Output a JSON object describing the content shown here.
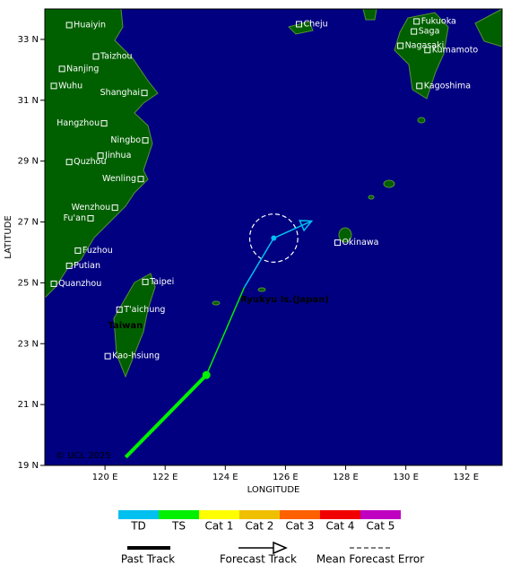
{
  "map": {
    "xlabel": "LONGITUDE",
    "ylabel": "LATITUDE",
    "xlim": [
      118,
      133.2
    ],
    "ylim": [
      19,
      34
    ],
    "xticks": [
      {
        "value": 120,
        "label": "120 E"
      },
      {
        "value": 122,
        "label": "122 E"
      },
      {
        "value": 124,
        "label": "124 E"
      },
      {
        "value": 126,
        "label": "126 E"
      },
      {
        "value": 128,
        "label": "128 E"
      },
      {
        "value": 130,
        "label": "130 E"
      },
      {
        "value": 132,
        "label": "132 E"
      }
    ],
    "yticks": [
      {
        "value": 19,
        "label": "19 N"
      },
      {
        "value": 21,
        "label": "21 N"
      },
      {
        "value": 23,
        "label": "23 N"
      },
      {
        "value": 25,
        "label": "25 N"
      },
      {
        "value": 27,
        "label": "27 N"
      },
      {
        "value": 29,
        "label": "29 N"
      },
      {
        "value": 31,
        "label": "31 N"
      },
      {
        "value": 33,
        "label": "33 N"
      }
    ],
    "copyright": "© UCL 2025",
    "region_labels": [
      {
        "text": "Taiwan",
        "lon": 120.1,
        "lat": 23.6,
        "color": "#00c000"
      },
      {
        "text": "Ryukyu Is.(Japan)",
        "lon": 124.5,
        "lat": 24.45,
        "color": "#00e000"
      }
    ],
    "cities": [
      {
        "name": "Huaiyin",
        "lon": 118.81,
        "lat": 33.47,
        "label_side": "right"
      },
      {
        "name": "Taizhou",
        "lon": 119.7,
        "lat": 32.44,
        "label_side": "right"
      },
      {
        "name": "Nanjing",
        "lon": 118.57,
        "lat": 32.03,
        "label_side": "right"
      },
      {
        "name": "Wuhu",
        "lon": 118.3,
        "lat": 31.47,
        "label_side": "right"
      },
      {
        "name": "Shanghai",
        "lon": 121.31,
        "lat": 31.24,
        "label_side": "left"
      },
      {
        "name": "Hangzhou",
        "lon": 119.97,
        "lat": 30.24,
        "label_side": "left"
      },
      {
        "name": "Ningbo",
        "lon": 121.34,
        "lat": 29.68,
        "label_side": "left"
      },
      {
        "name": "Jinhua",
        "lon": 119.85,
        "lat": 29.18,
        "label_side": "right"
      },
      {
        "name": "Quzhou",
        "lon": 118.81,
        "lat": 28.97,
        "label_side": "right"
      },
      {
        "name": "Wenling",
        "lon": 121.19,
        "lat": 28.41,
        "label_side": "left"
      },
      {
        "name": "Wenzhou",
        "lon": 120.33,
        "lat": 27.47,
        "label_side": "left"
      },
      {
        "name": "Fu'an",
        "lon": 119.52,
        "lat": 27.12,
        "label_side": "left"
      },
      {
        "name": "Fuzhou",
        "lon": 119.1,
        "lat": 26.06,
        "label_side": "right"
      },
      {
        "name": "Putian",
        "lon": 118.81,
        "lat": 25.56,
        "label_side": "right"
      },
      {
        "name": "Quanzhou",
        "lon": 118.3,
        "lat": 24.97,
        "label_side": "right"
      },
      {
        "name": "Taipei",
        "lon": 121.34,
        "lat": 25.03,
        "label_side": "right"
      },
      {
        "name": "T'aichung",
        "lon": 120.48,
        "lat": 24.12,
        "label_side": "right"
      },
      {
        "name": "Kao-hsiung",
        "lon": 120.09,
        "lat": 22.59,
        "label_side": "right"
      },
      {
        "name": "Cheju",
        "lon": 126.45,
        "lat": 33.5,
        "label_side": "right"
      },
      {
        "name": "Fukuoka",
        "lon": 130.36,
        "lat": 33.59,
        "label_side": "right"
      },
      {
        "name": "Saga",
        "lon": 130.27,
        "lat": 33.26,
        "label_side": "right"
      },
      {
        "name": "Nagasaki",
        "lon": 129.82,
        "lat": 32.79,
        "label_side": "right"
      },
      {
        "name": "Kumamoto",
        "lon": 130.72,
        "lat": 32.65,
        "label_side": "right"
      },
      {
        "name": "Kagoshima",
        "lon": 130.45,
        "lat": 31.47,
        "label_side": "right"
      },
      {
        "name": "Okinawa",
        "lon": 127.73,
        "lat": 26.32,
        "label_side": "right"
      }
    ],
    "past_track": {
      "lon": [
        120.69,
        123.37
      ],
      "lat": [
        19.27,
        21.97
      ],
      "color": "#00f000"
    },
    "forecast_segments": [
      {
        "lon": [
          123.37,
          124.63
        ],
        "lat": [
          21.97,
          24.85
        ],
        "color": "#00f000"
      },
      {
        "lon": [
          124.63,
          125.61
        ],
        "lat": [
          24.85,
          26.47
        ],
        "color": "#00c0f0"
      },
      {
        "lon": [
          125.61,
          126.87
        ],
        "lat": [
          26.47,
          27.03
        ],
        "color": "#00c0f0"
      }
    ],
    "error_circle": {
      "lon": 125.61,
      "lat": 26.47,
      "radius_deg": 0.8
    }
  },
  "legend": {
    "categories": [
      {
        "name": "TD",
        "color": "#00c0f0"
      },
      {
        "name": "TS",
        "color": "#00f000"
      },
      {
        "name": "Cat 1",
        "color": "#ffff00"
      },
      {
        "name": "Cat 2",
        "color": "#f0c000"
      },
      {
        "name": "Cat 3",
        "color": "#ff6000"
      },
      {
        "name": "Cat 4",
        "color": "#f00000"
      },
      {
        "name": "Cat 5",
        "color": "#c000c0"
      }
    ],
    "past_track": "Past Track",
    "forecast_track": "Forecast Track",
    "mean_error": "Mean Forecast Error"
  }
}
